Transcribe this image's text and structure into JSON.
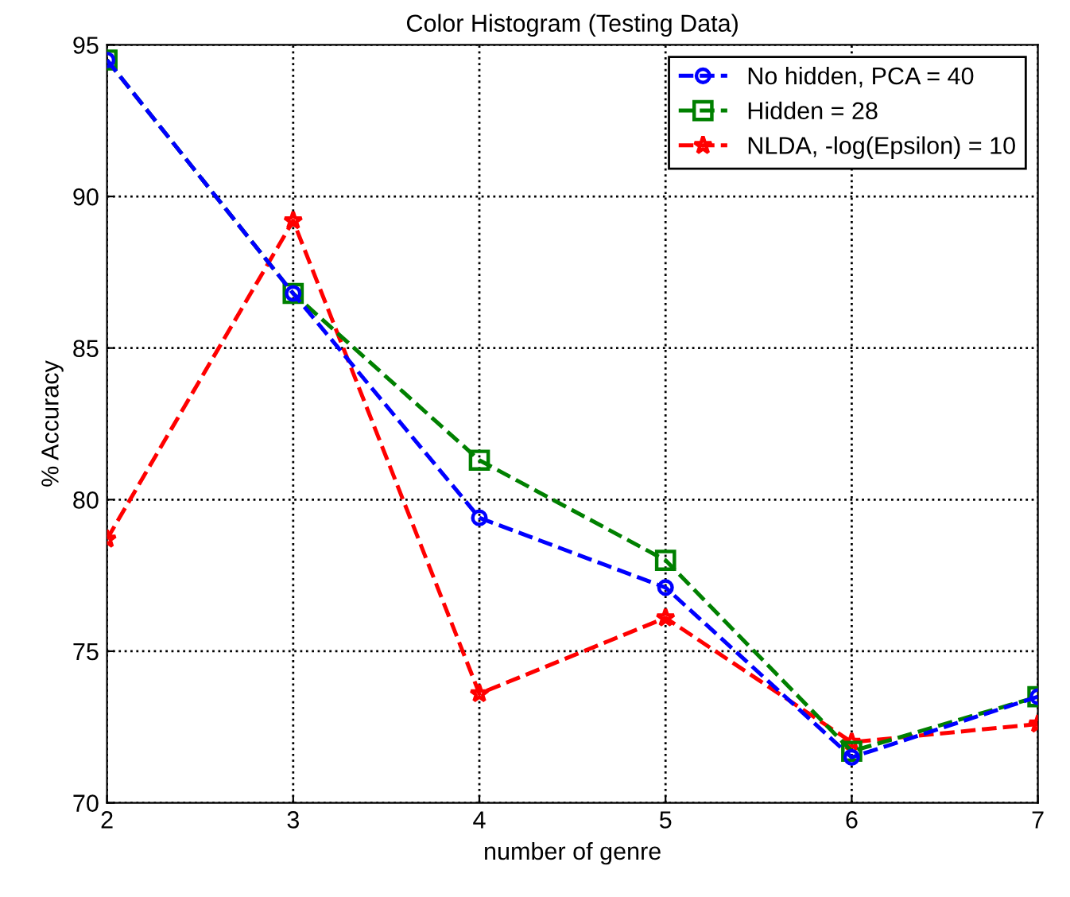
{
  "chart_data": {
    "type": "line",
    "title": "Color Histogram (Testing Data)",
    "xlabel": "number of genre",
    "ylabel": "% Accuracy",
    "x": [
      2,
      3,
      4,
      5,
      6,
      7
    ],
    "series": [
      {
        "name": "No hidden, PCA = 40",
        "color": "#0000ff",
        "marker": "circle",
        "values": [
          94.5,
          86.8,
          79.4,
          77.1,
          71.5,
          73.5
        ]
      },
      {
        "name": "Hidden = 28",
        "color": "#008000",
        "marker": "square",
        "values": [
          94.5,
          86.8,
          81.3,
          78.0,
          71.7,
          73.5
        ]
      },
      {
        "name": "NLDA, -log(Epsilon) = 10",
        "color": "#ff0000",
        "marker": "star",
        "values": [
          78.7,
          89.2,
          73.6,
          76.1,
          72.0,
          72.6
        ]
      }
    ],
    "line_style": "dashed",
    "xlim": [
      2,
      7
    ],
    "ylim": [
      70,
      95
    ],
    "xticks": [
      2,
      3,
      4,
      5,
      6,
      7
    ],
    "yticks": [
      70,
      75,
      80,
      85,
      90,
      95
    ],
    "grid": true,
    "legend": "top right"
  }
}
